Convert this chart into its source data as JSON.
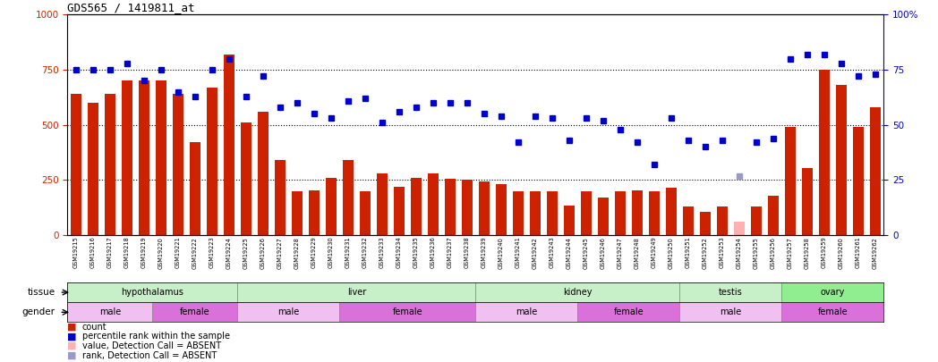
{
  "title": "GDS565 / 1419811_at",
  "samples": [
    "GSM19215",
    "GSM19216",
    "GSM19217",
    "GSM19218",
    "GSM19219",
    "GSM19220",
    "GSM19221",
    "GSM19222",
    "GSM19223",
    "GSM19224",
    "GSM19225",
    "GSM19226",
    "GSM19227",
    "GSM19228",
    "GSM19229",
    "GSM19230",
    "GSM19231",
    "GSM19232",
    "GSM19233",
    "GSM19234",
    "GSM19235",
    "GSM19236",
    "GSM19237",
    "GSM19238",
    "GSM19239",
    "GSM19240",
    "GSM19241",
    "GSM19242",
    "GSM19243",
    "GSM19244",
    "GSM19245",
    "GSM19246",
    "GSM19247",
    "GSM19248",
    "GSM19249",
    "GSM19250",
    "GSM19251",
    "GSM19252",
    "GSM19253",
    "GSM19254",
    "GSM19255",
    "GSM19256",
    "GSM19257",
    "GSM19258",
    "GSM19259",
    "GSM19260",
    "GSM19261",
    "GSM19262"
  ],
  "bar_values": [
    640,
    600,
    640,
    700,
    700,
    700,
    640,
    420,
    670,
    820,
    510,
    560,
    340,
    200,
    205,
    260,
    340,
    200,
    280,
    220,
    260,
    280,
    255,
    250,
    245,
    230,
    200,
    200,
    200,
    135,
    200,
    170,
    200,
    205,
    200,
    215,
    130,
    105,
    130,
    60,
    130,
    180,
    490,
    305,
    750,
    680,
    490,
    580
  ],
  "bar_absent": [
    false,
    false,
    false,
    false,
    false,
    false,
    false,
    false,
    false,
    false,
    false,
    false,
    false,
    false,
    false,
    false,
    false,
    false,
    false,
    false,
    false,
    false,
    false,
    false,
    false,
    false,
    false,
    false,
    false,
    false,
    false,
    false,
    false,
    false,
    false,
    false,
    false,
    false,
    false,
    true,
    false,
    false,
    false,
    false,
    false,
    false,
    false,
    false
  ],
  "dot_values": [
    75,
    75,
    75,
    78,
    70,
    75,
    65,
    63,
    75,
    80,
    63,
    72,
    58,
    60,
    55,
    53,
    61,
    62,
    51,
    56,
    58,
    60,
    60,
    60,
    55,
    54,
    42,
    54,
    53,
    43,
    53,
    52,
    48,
    42,
    32,
    53,
    43,
    40,
    43,
    27,
    42,
    44,
    80,
    82,
    82,
    78,
    72,
    73
  ],
  "dot_absent": [
    false,
    false,
    false,
    false,
    false,
    false,
    false,
    false,
    false,
    false,
    false,
    false,
    false,
    false,
    false,
    false,
    false,
    false,
    false,
    false,
    false,
    false,
    false,
    false,
    false,
    false,
    false,
    false,
    false,
    false,
    false,
    false,
    false,
    false,
    false,
    false,
    false,
    false,
    false,
    true,
    false,
    false,
    false,
    false,
    false,
    false,
    false,
    false
  ],
  "tissue_groups": [
    {
      "label": "hypothalamus",
      "start": 0,
      "end": 10,
      "color": "#c8f0c8"
    },
    {
      "label": "liver",
      "start": 10,
      "end": 24,
      "color": "#c8f0c8"
    },
    {
      "label": "kidney",
      "start": 24,
      "end": 36,
      "color": "#c8f0c8"
    },
    {
      "label": "testis",
      "start": 36,
      "end": 42,
      "color": "#c8f0c8"
    },
    {
      "label": "ovary",
      "start": 42,
      "end": 48,
      "color": "#90ee90"
    }
  ],
  "gender_groups": [
    {
      "label": "male",
      "start": 0,
      "end": 5,
      "color": "#f0c0f0"
    },
    {
      "label": "female",
      "start": 5,
      "end": 10,
      "color": "#da70da"
    },
    {
      "label": "male",
      "start": 10,
      "end": 16,
      "color": "#f0c0f0"
    },
    {
      "label": "female",
      "start": 16,
      "end": 24,
      "color": "#da70da"
    },
    {
      "label": "male",
      "start": 24,
      "end": 30,
      "color": "#f0c0f0"
    },
    {
      "label": "female",
      "start": 30,
      "end": 36,
      "color": "#da70da"
    },
    {
      "label": "male",
      "start": 36,
      "end": 42,
      "color": "#f0c0f0"
    },
    {
      "label": "female",
      "start": 42,
      "end": 48,
      "color": "#da70da"
    }
  ],
  "bar_color": "#cc2200",
  "bar_absent_color": "#ffb0b0",
  "dot_color": "#0000cc",
  "dot_absent_color": "#9999cc",
  "ylim_left": [
    0,
    1000
  ],
  "ylim_right": [
    0,
    100
  ],
  "yticks_left": [
    0,
    250,
    500,
    750,
    1000
  ],
  "yticks_right": [
    0,
    25,
    50,
    75,
    100
  ],
  "ytick_right_labels": [
    "0",
    "25",
    "50",
    "75",
    "100%"
  ],
  "grid_values": [
    250,
    500,
    750
  ],
  "bg_color": "#ffffff"
}
